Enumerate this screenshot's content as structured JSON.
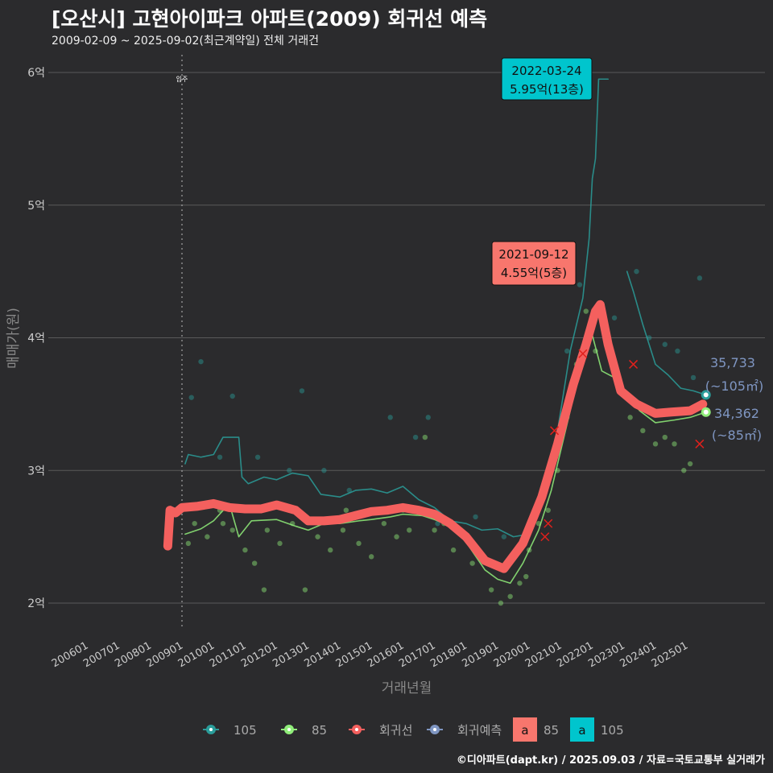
{
  "title": "[오산시] 고현아이파크 아파트(2009) 회귀선 예측",
  "subtitle": "2009-02-09 ~ 2025-09-02(최근계약일) 전체 거래건",
  "footer": "©디아파트(dapt.kr) / 2025.09.03 / 자료=국토교통부 실거래가",
  "chart_data": {
    "type": "line",
    "title": "[오산시] 고현아이파크 아파트(2009) 회귀선 예측",
    "xlabel": "거래년월",
    "ylabel": "매매가(원)",
    "ylim": [
      1.8,
      6.1
    ],
    "xlim": [
      2005.3,
      2026.2
    ],
    "yticks": [
      {
        "v": 2,
        "label": "2억"
      },
      {
        "v": 3,
        "label": "3억"
      },
      {
        "v": 4,
        "label": "4억"
      },
      {
        "v": 5,
        "label": "5억"
      },
      {
        "v": 6,
        "label": "6억"
      }
    ],
    "xticks": [
      {
        "v": 2006,
        "label": "200601"
      },
      {
        "v": 2007,
        "label": "200701"
      },
      {
        "v": 2008,
        "label": "200801"
      },
      {
        "v": 2009,
        "label": "200901"
      },
      {
        "v": 2010,
        "label": "201001"
      },
      {
        "v": 2011,
        "label": "201101"
      },
      {
        "v": 2012,
        "label": "201201"
      },
      {
        "v": 2013,
        "label": "201301"
      },
      {
        "v": 2014,
        "label": "201401"
      },
      {
        "v": 2015,
        "label": "201501"
      },
      {
        "v": 2016,
        "label": "201601"
      },
      {
        "v": 2017,
        "label": "201701"
      },
      {
        "v": 2018,
        "label": "201801"
      },
      {
        "v": 2019,
        "label": "201901"
      },
      {
        "v": 2020,
        "label": "202001"
      },
      {
        "v": 2021,
        "label": "202101"
      },
      {
        "v": 2022,
        "label": "202201"
      },
      {
        "v": 2023,
        "label": "202301"
      },
      {
        "v": 2024,
        "label": "202401"
      },
      {
        "v": 2025,
        "label": "202501"
      }
    ],
    "vline": {
      "x": 2009,
      "label": "입주"
    },
    "series": [
      {
        "name": "105",
        "color": "#2a9d9a",
        "points": [
          [
            2009.1,
            3.05
          ],
          [
            2009.2,
            3.12
          ],
          [
            2009.6,
            3.1
          ],
          [
            2010,
            3.12
          ],
          [
            2010.3,
            3.25
          ],
          [
            2010.8,
            3.25
          ],
          [
            2010.9,
            2.95
          ],
          [
            2011.1,
            2.9
          ],
          [
            2011.6,
            2.95
          ],
          [
            2012,
            2.93
          ],
          [
            2012.5,
            2.98
          ],
          [
            2013,
            2.96
          ],
          [
            2013.4,
            2.82
          ],
          [
            2014,
            2.8
          ],
          [
            2014.5,
            2.85
          ],
          [
            2015,
            2.86
          ],
          [
            2015.5,
            2.83
          ],
          [
            2016,
            2.88
          ],
          [
            2016.5,
            2.78
          ],
          [
            2017,
            2.72
          ],
          [
            2017.5,
            2.62
          ],
          [
            2018,
            2.6
          ],
          [
            2018.5,
            2.55
          ],
          [
            2019,
            2.56
          ],
          [
            2019.5,
            2.5
          ],
          [
            2020,
            2.52
          ],
          [
            2020.5,
            2.8
          ],
          [
            2020.9,
            3.3
          ],
          [
            2021.3,
            3.9
          ],
          [
            2021.7,
            4.3
          ],
          [
            2021.9,
            4.75
          ],
          [
            2022,
            5.2
          ],
          [
            2022.1,
            5.35
          ],
          [
            2022.2,
            5.95
          ],
          [
            2022.5,
            5.95
          ]
        ]
      },
      {
        "name": "105b",
        "color": "#2a9d9a",
        "points": [
          [
            2023.1,
            4.5
          ],
          [
            2023.3,
            4.35
          ],
          [
            2023.6,
            4.1
          ],
          [
            2024,
            3.8
          ],
          [
            2024.4,
            3.72
          ],
          [
            2024.8,
            3.62
          ],
          [
            2025.2,
            3.6
          ],
          [
            2025.6,
            3.57
          ]
        ]
      },
      {
        "name": "85",
        "color": "#90ee7a",
        "points": [
          [
            2009.1,
            2.52
          ],
          [
            2009.6,
            2.56
          ],
          [
            2010,
            2.62
          ],
          [
            2010.5,
            2.75
          ],
          [
            2010.8,
            2.5
          ],
          [
            2011.2,
            2.62
          ],
          [
            2012,
            2.63
          ],
          [
            2012.6,
            2.58
          ],
          [
            2013,
            2.55
          ],
          [
            2013.5,
            2.6
          ],
          [
            2014,
            2.6
          ],
          [
            2014.6,
            2.62
          ],
          [
            2015,
            2.63
          ],
          [
            2015.6,
            2.65
          ],
          [
            2016,
            2.67
          ],
          [
            2016.6,
            2.66
          ],
          [
            2017,
            2.63
          ],
          [
            2017.5,
            2.58
          ],
          [
            2018,
            2.46
          ],
          [
            2018.6,
            2.25
          ],
          [
            2019,
            2.18
          ],
          [
            2019.4,
            2.15
          ],
          [
            2019.8,
            2.3
          ],
          [
            2020.3,
            2.55
          ],
          [
            2020.7,
            2.85
          ],
          [
            2021,
            3.15
          ],
          [
            2021.4,
            3.55
          ],
          [
            2021.8,
            3.9
          ],
          [
            2022,
            4.02
          ],
          [
            2022.3,
            3.75
          ],
          [
            2022.7,
            3.7
          ],
          [
            2023,
            3.6
          ],
          [
            2023.5,
            3.45
          ],
          [
            2024,
            3.36
          ],
          [
            2024.6,
            3.38
          ],
          [
            2025.1,
            3.4
          ],
          [
            2025.6,
            3.44
          ]
        ]
      },
      {
        "name": "회귀선",
        "color": "#f4605e",
        "points": [
          [
            2008.55,
            2.43
          ],
          [
            2008.62,
            2.7
          ],
          [
            2008.8,
            2.68
          ],
          [
            2009,
            2.72
          ],
          [
            2009.5,
            2.73
          ],
          [
            2010,
            2.75
          ],
          [
            2010.5,
            2.72
          ],
          [
            2011,
            2.71
          ],
          [
            2011.5,
            2.71
          ],
          [
            2012,
            2.74
          ],
          [
            2012.6,
            2.7
          ],
          [
            2013,
            2.62
          ],
          [
            2013.5,
            2.62
          ],
          [
            2014,
            2.63
          ],
          [
            2014.5,
            2.66
          ],
          [
            2015,
            2.69
          ],
          [
            2015.5,
            2.7
          ],
          [
            2016,
            2.72
          ],
          [
            2016.5,
            2.7
          ],
          [
            2017,
            2.67
          ],
          [
            2017.5,
            2.6
          ],
          [
            2018,
            2.5
          ],
          [
            2018.6,
            2.32
          ],
          [
            2019.2,
            2.26
          ],
          [
            2019.8,
            2.45
          ],
          [
            2020.4,
            2.8
          ],
          [
            2020.9,
            3.2
          ],
          [
            2021.4,
            3.65
          ],
          [
            2021.8,
            3.95
          ],
          [
            2022.1,
            4.2
          ],
          [
            2022.25,
            4.25
          ],
          [
            2022.5,
            3.95
          ],
          [
            2022.9,
            3.6
          ],
          [
            2023.4,
            3.5
          ],
          [
            2024,
            3.43
          ],
          [
            2024.5,
            3.44
          ],
          [
            2025.1,
            3.45
          ],
          [
            2025.5,
            3.5
          ]
        ]
      }
    ],
    "scatter_85": [
      [
        2009.2,
        2.45
      ],
      [
        2009.4,
        2.6
      ],
      [
        2009.8,
        2.5
      ],
      [
        2010.2,
        2.7
      ],
      [
        2010.6,
        2.55
      ],
      [
        2011,
        2.4
      ],
      [
        2011.3,
        2.3
      ],
      [
        2011.7,
        2.55
      ],
      [
        2012.1,
        2.45
      ],
      [
        2012.5,
        2.6
      ],
      [
        2012.9,
        2.1
      ],
      [
        2013.3,
        2.5
      ],
      [
        2013.7,
        2.4
      ],
      [
        2014.1,
        2.55
      ],
      [
        2014.6,
        2.45
      ],
      [
        2015,
        2.35
      ],
      [
        2015.4,
        2.6
      ],
      [
        2015.8,
        2.5
      ],
      [
        2016.2,
        2.55
      ],
      [
        2016.7,
        3.25
      ],
      [
        2017,
        2.55
      ],
      [
        2017.6,
        2.4
      ],
      [
        2018.2,
        2.3
      ],
      [
        2018.8,
        2.1
      ],
      [
        2019.1,
        2.0
      ],
      [
        2019.4,
        2.05
      ],
      [
        2019.7,
        2.15
      ],
      [
        2020,
        2.4
      ],
      [
        2020.3,
        2.6
      ],
      [
        2020.6,
        2.7
      ],
      [
        2020.9,
        3.0
      ],
      [
        2021.2,
        3.4
      ],
      [
        2021.5,
        3.8
      ],
      [
        2021.8,
        4.2
      ],
      [
        2022.1,
        3.9
      ],
      [
        2022.8,
        3.7
      ],
      [
        2023.2,
        3.4
      ],
      [
        2023.6,
        3.3
      ],
      [
        2024,
        3.2
      ],
      [
        2024.3,
        3.25
      ],
      [
        2024.6,
        3.2
      ],
      [
        2025.1,
        3.05
      ],
      [
        2024.9,
        3.0
      ],
      [
        2012,
        2.75
      ],
      [
        2014.2,
        2.7
      ],
      [
        2016,
        2.7
      ],
      [
        2017.3,
        2.6
      ],
      [
        2019.9,
        2.2
      ],
      [
        2011.6,
        2.1
      ],
      [
        2010.3,
        2.6
      ]
    ],
    "scatter_105": [
      [
        2009.3,
        3.55
      ],
      [
        2009.6,
        3.82
      ],
      [
        2010.2,
        3.1
      ],
      [
        2010.6,
        3.56
      ],
      [
        2011.4,
        3.1
      ],
      [
        2012.4,
        3.0
      ],
      [
        2012.8,
        3.6
      ],
      [
        2013.5,
        3.0
      ],
      [
        2014.3,
        2.85
      ],
      [
        2015.6,
        3.4
      ],
      [
        2016.4,
        3.25
      ],
      [
        2016.8,
        3.4
      ],
      [
        2017.1,
        2.6
      ],
      [
        2018.3,
        2.65
      ],
      [
        2019.2,
        2.5
      ],
      [
        2021.2,
        3.9
      ],
      [
        2021.6,
        4.4
      ],
      [
        2022.7,
        4.15
      ],
      [
        2023.4,
        4.5
      ],
      [
        2023.8,
        4.0
      ],
      [
        2024.3,
        3.95
      ],
      [
        2024.7,
        3.9
      ],
      [
        2025.4,
        4.45
      ],
      [
        2025.2,
        3.7
      ]
    ],
    "cancelled": [
      [
        2020.5,
        2.5
      ],
      [
        2020.6,
        2.6
      ],
      [
        2020.8,
        3.3
      ],
      [
        2021.7,
        3.88
      ],
      [
        2023.3,
        3.8
      ],
      [
        2025.4,
        3.2
      ]
    ],
    "annotations": [
      {
        "x": 2022.2,
        "y": 5.95,
        "date": "2022-03-24",
        "price": "5.95억(13층)",
        "color": "#00c5cd"
      },
      {
        "x": 2021.7,
        "y": 4.55,
        "date": "2021-09-12",
        "price": "4.55억(5층)",
        "color": "#f8766d"
      }
    ],
    "end_labels": [
      {
        "x": 2025.6,
        "y": 3.57,
        "value": "35,733",
        "area": "(~105㎡)",
        "color": "#2a9d9a"
      },
      {
        "x": 2025.6,
        "y": 3.44,
        "value": "34,362",
        "area": "(~85㎡)",
        "color": "#90ee7a"
      }
    ],
    "legend": {
      "items": [
        {
          "label": "105",
          "color": "#2a9d9a"
        },
        {
          "label": "85",
          "color": "#90ee7a"
        },
        {
          "label": "회귀선",
          "color": "#f4605e"
        },
        {
          "label": "회귀예측",
          "color": "#7f96c2"
        }
      ],
      "label_boxes": [
        {
          "glyph": "a",
          "label": "85",
          "color": "#f8766d"
        },
        {
          "glyph": "a",
          "label": "105",
          "color": "#00c5cd"
        }
      ]
    }
  }
}
